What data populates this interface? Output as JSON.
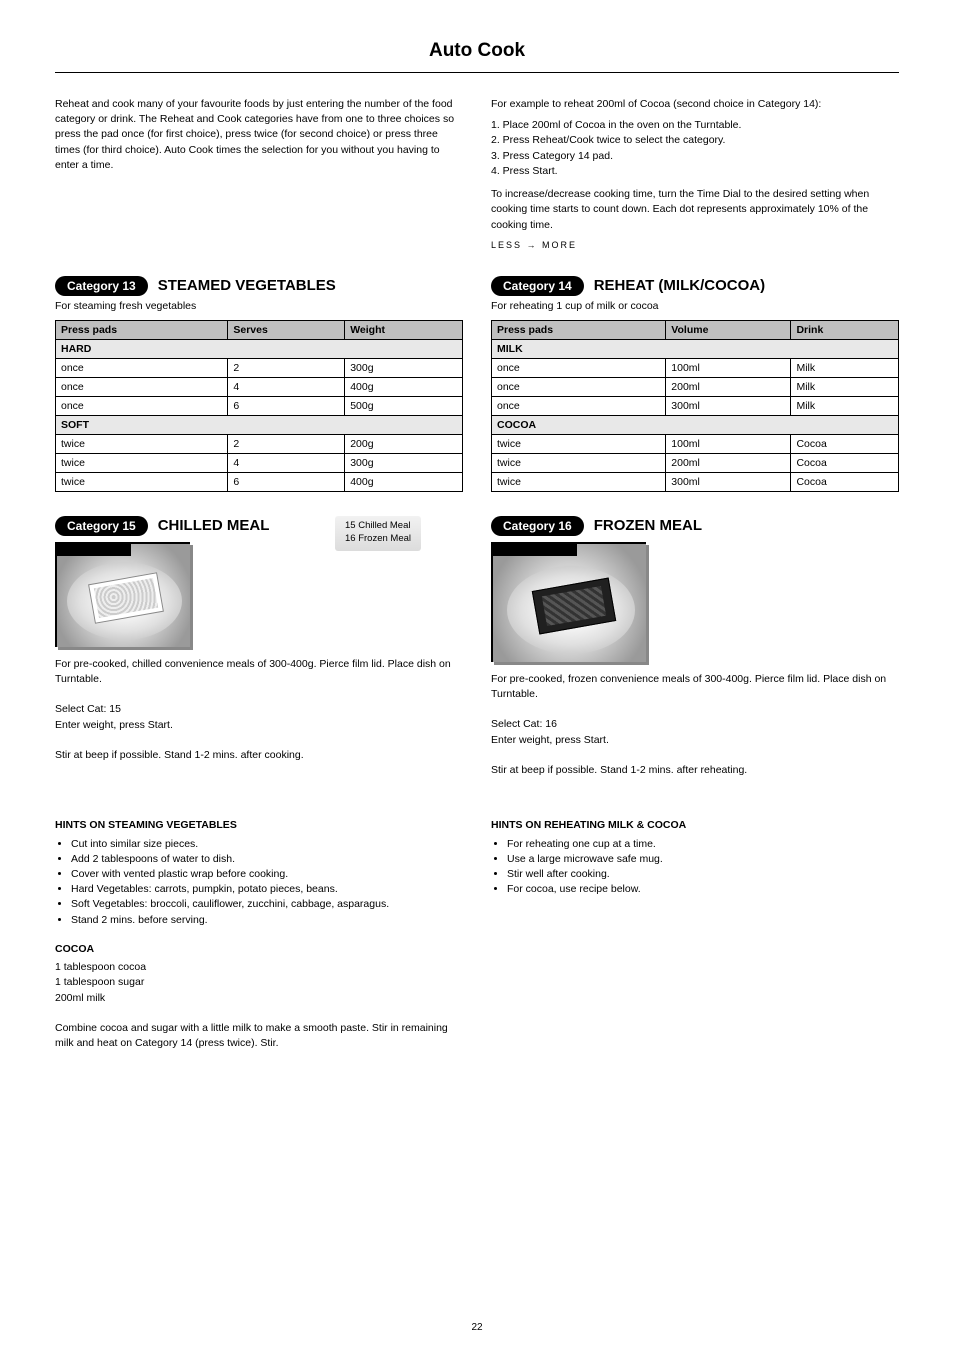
{
  "page": {
    "heading": "Auto Cook",
    "number": "22"
  },
  "intro": {
    "col1": "Reheat and cook many of your favourite foods by just entering the number of the food category or drink. The Reheat and Cook categories have from one to three choices so press the pad once (for first choice), press twice (for second choice) or press three times (for third choice). Auto Cook times the selection for you without you having to enter a time.",
    "col2_a": "For example to reheat 200ml of Cocoa (second choice in Category 14):",
    "col2_steps": "1. Place 200ml of Cocoa in the oven on the Turntable.\n2. Press Reheat/Cook twice to select the category.\n3. Press Category 14 pad.\n4. Press Start.",
    "col2_b": "To increase/decrease cooking time, turn the Time Dial to the desired setting when cooking time starts to count down. Each dot represents approximately 10% of the cooking time.",
    "less_more": "LESS     →     MORE"
  },
  "steamed_veg": {
    "pill": "Category 13",
    "title": "STEAMED VEGETABLES",
    "sub": "For steaming fresh vegetables",
    "table": {
      "headers": [
        "Press pads",
        "Serves",
        "Weight"
      ],
      "sections": [
        {
          "label": "HARD",
          "rows": [
            [
              "once",
              "2",
              "300g"
            ],
            [
              "once",
              "4",
              "400g"
            ],
            [
              "once",
              "6",
              "500g"
            ]
          ]
        },
        {
          "label": "SOFT",
          "rows": [
            [
              "twice",
              "2",
              "200g"
            ],
            [
              "twice",
              "4",
              "300g"
            ],
            [
              "twice",
              "6",
              "400g"
            ]
          ]
        }
      ]
    }
  },
  "reheat_milk": {
    "pill": "Category 14",
    "title": "REHEAT (MILK/COCOA)",
    "sub": "For reheating 1 cup of milk or cocoa",
    "table": {
      "headers": [
        "Press pads",
        "Volume",
        "Drink"
      ],
      "sections": [
        {
          "label": "MILK",
          "rows": [
            [
              "once",
              "100ml",
              "Milk"
            ],
            [
              "once",
              "200ml",
              "Milk"
            ],
            [
              "once",
              "300ml",
              "Milk"
            ]
          ]
        },
        {
          "label": "COCOA",
          "rows": [
            [
              "twice",
              "100ml",
              "Cocoa"
            ],
            [
              "twice",
              "200ml",
              "Cocoa"
            ],
            [
              "twice",
              "300ml",
              "Cocoa"
            ]
          ]
        }
      ]
    }
  },
  "chilled_meal": {
    "pill": "Category 15",
    "title": "CHILLED MEAL",
    "display_lines": [
      "15  Chilled Meal",
      "16  Frozen Meal"
    ],
    "body": "For pre-cooked, chilled convenience meals of 300-400g. Pierce film lid. Place dish on Turntable.\n\nSelect Cat: 15\nEnter weight, press Start.\n\nStir at beep if possible. Stand 1-2 mins. after cooking."
  },
  "frozen_meal": {
    "pill": "Category 16",
    "title": "FROZEN MEAL",
    "body": "For pre-cooked, frozen convenience meals of 300-400g. Pierce film lid. Place dish on Turntable.\n\nSelect Cat: 16\nEnter weight, press Start.\n\nStir at beep if possible. Stand 1-2 mins. after reheating."
  },
  "cocoa_recipe": {
    "title": "COCOA",
    "body": "1 tablespoon cocoa\n1 tablespoon sugar\n200ml milk\n\nCombine cocoa and sugar with a little milk to make a smooth paste. Stir in remaining milk and heat on Category 14 (press twice). Stir."
  },
  "hints": {
    "title": "HINTS ON STEAMING VEGETABLES",
    "items": [
      "Cut into similar size pieces.",
      "Add 2 tablespoons of water to dish.",
      "Cover with vented plastic wrap before cooking.",
      "Hard Vegetables: carrots, pumpkin, potato pieces, beans.",
      "Soft Vegetables: broccoli, cauliflower, zucchini, cabbage, asparagus.",
      "Stand 2 mins. before serving."
    ],
    "milk_title": "HINTS ON REHEATING MILK & COCOA",
    "milk_items": [
      "For reheating one cup at a time.",
      "Use a large microwave safe mug.",
      "Stir well after cooking.",
      "For cocoa, use recipe below."
    ]
  },
  "colors": {
    "page_bg": "#ffffff",
    "text": "#000000",
    "table_header_bg": "#bfbfbf",
    "pill_bg": "#000000",
    "pill_fg": "#ffffff"
  }
}
